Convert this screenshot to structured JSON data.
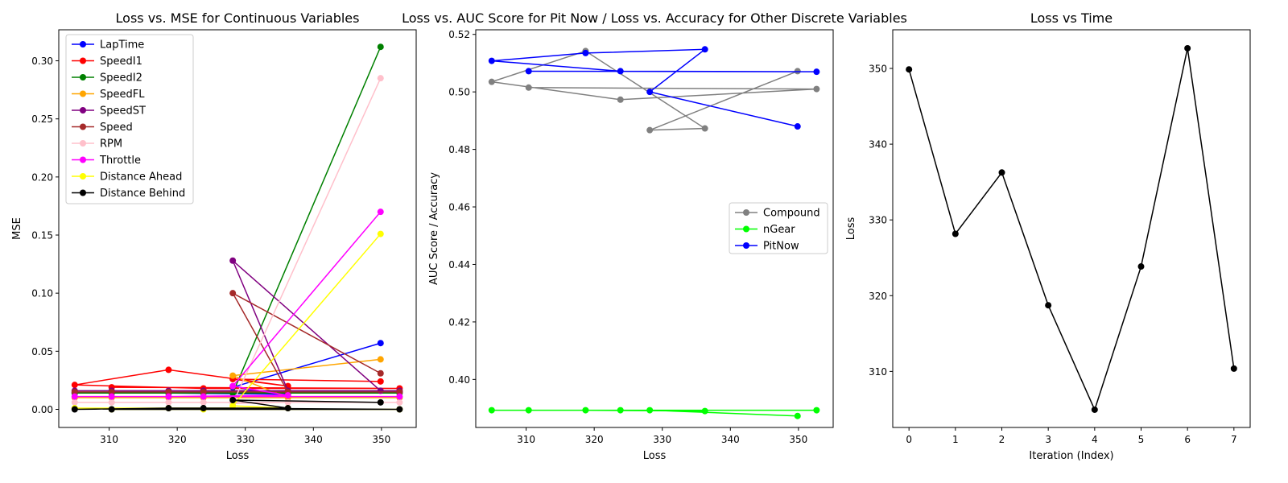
{
  "chart_data": [
    {
      "type": "line",
      "title": "Loss vs. MSE for Continuous Variables",
      "xlabel": "Loss",
      "ylabel": "MSE",
      "xlim": [
        302.6,
        355.1
      ],
      "ylim": [
        -0.0156,
        0.3267
      ],
      "xticks": [
        310,
        320,
        330,
        340,
        350
      ],
      "yticks": [
        0.0,
        0.05,
        0.1,
        0.15,
        0.2,
        0.25,
        0.3
      ],
      "ytick_labels": [
        "0.00",
        "0.05",
        "0.10",
        "0.15",
        "0.20",
        "0.25",
        "0.30"
      ],
      "grid": false,
      "legend_position": "upper left",
      "x": [
        349.87,
        328.16,
        336.26,
        318.73,
        304.94,
        323.85,
        352.66,
        310.37
      ],
      "series": [
        {
          "name": "LapTime",
          "color": "#0000ff",
          "values": [
            0.057,
            0.019,
            0.013,
            0.014,
            0.014,
            0.015,
            0.015,
            0.015
          ]
        },
        {
          "name": "SpeedI1",
          "color": "#ff0000",
          "values": [
            0.024,
            0.026,
            0.02,
            0.034,
            0.021,
            0.018,
            0.018,
            0.019
          ]
        },
        {
          "name": "SpeedI2",
          "color": "#008000",
          "values": [
            0.312,
            0.014,
            0.014,
            0.014,
            0.014,
            0.014,
            0.014,
            0.014
          ]
        },
        {
          "name": "SpeedFL",
          "color": "#ffa500",
          "values": [
            0.043,
            0.029,
            0.01,
            0.01,
            0.01,
            0.01,
            0.01,
            0.01
          ]
        },
        {
          "name": "SpeedST",
          "color": "#800080",
          "values": [
            0.016,
            0.128,
            0.016,
            0.016,
            0.016,
            0.016,
            0.016,
            0.016
          ]
        },
        {
          "name": "Speed",
          "color": "#a52a2a",
          "values": [
            0.031,
            0.1,
            0.015,
            0.015,
            0.015,
            0.015,
            0.015,
            0.015
          ]
        },
        {
          "name": "RPM",
          "color": "#ffc0cb",
          "values": [
            0.285,
            0.005,
            0.006,
            0.006,
            0.006,
            0.006,
            0.006,
            0.006
          ]
        },
        {
          "name": "Throttle",
          "color": "#ff00ff",
          "values": [
            0.17,
            0.02,
            0.012,
            0.011,
            0.011,
            0.011,
            0.011,
            0.011
          ]
        },
        {
          "name": "Distance Ahead",
          "color": "#ffff00",
          "values": [
            0.151,
            0.003,
            0.001,
            0.001,
            0.001,
            0.0,
            0.0,
            0.0
          ]
        },
        {
          "name": "Distance Behind",
          "color": "#000000",
          "values": [
            0.006,
            0.008,
            0.001,
            0.001,
            0.0,
            0.001,
            0.0,
            0.0
          ]
        }
      ]
    },
    {
      "type": "line",
      "title": "Loss vs. AUC Score for Pit Now / Loss vs. Accuracy for Other Discrete Variables",
      "xlabel": "Loss",
      "ylabel": "AUC Score / Accuracy",
      "xlim": [
        302.6,
        355.1
      ],
      "ylim": [
        0.3833,
        0.5216
      ],
      "xticks": [
        310,
        320,
        330,
        340,
        350
      ],
      "yticks": [
        0.4,
        0.42,
        0.44,
        0.46,
        0.48,
        0.5,
        0.52
      ],
      "ytick_labels": [
        "0.40",
        "0.42",
        "0.44",
        "0.46",
        "0.48",
        "0.50",
        "0.52"
      ],
      "grid": false,
      "legend_position": "center right",
      "x": [
        349.87,
        328.16,
        336.26,
        318.73,
        304.94,
        323.85,
        352.66,
        310.37
      ],
      "series": [
        {
          "name": "Compound",
          "color": "#808080",
          "values": [
            0.5072,
            0.4867,
            0.4873,
            0.5142,
            0.5035,
            0.4973,
            0.501,
            0.5015
          ]
        },
        {
          "name": "nGear",
          "color": "#00ff00",
          "values": [
            0.3873,
            0.3893,
            0.389,
            0.3893,
            0.3893,
            0.3893,
            0.3893,
            0.3893
          ]
        },
        {
          "name": "PitNow",
          "color": "#0000ff",
          "values": [
            0.488,
            0.5,
            0.5148,
            0.5135,
            0.5108,
            0.5072,
            0.507,
            0.5072
          ]
        }
      ]
    },
    {
      "type": "line",
      "title": "Loss vs Time",
      "xlabel": "Iteration (Index)",
      "ylabel": "Loss",
      "xlim": [
        -0.35,
        7.35
      ],
      "ylim": [
        302.6,
        355.1
      ],
      "xticks": [
        0,
        1,
        2,
        3,
        4,
        5,
        6,
        7
      ],
      "yticks": [
        310,
        320,
        330,
        340,
        350
      ],
      "grid": false,
      "x": [
        0,
        1,
        2,
        3,
        4,
        5,
        6,
        7
      ],
      "series": [
        {
          "name": "",
          "color": "#000000",
          "values": [
            349.87,
            328.16,
            336.26,
            318.73,
            304.94,
            323.85,
            352.66,
            310.37
          ]
        }
      ]
    }
  ]
}
